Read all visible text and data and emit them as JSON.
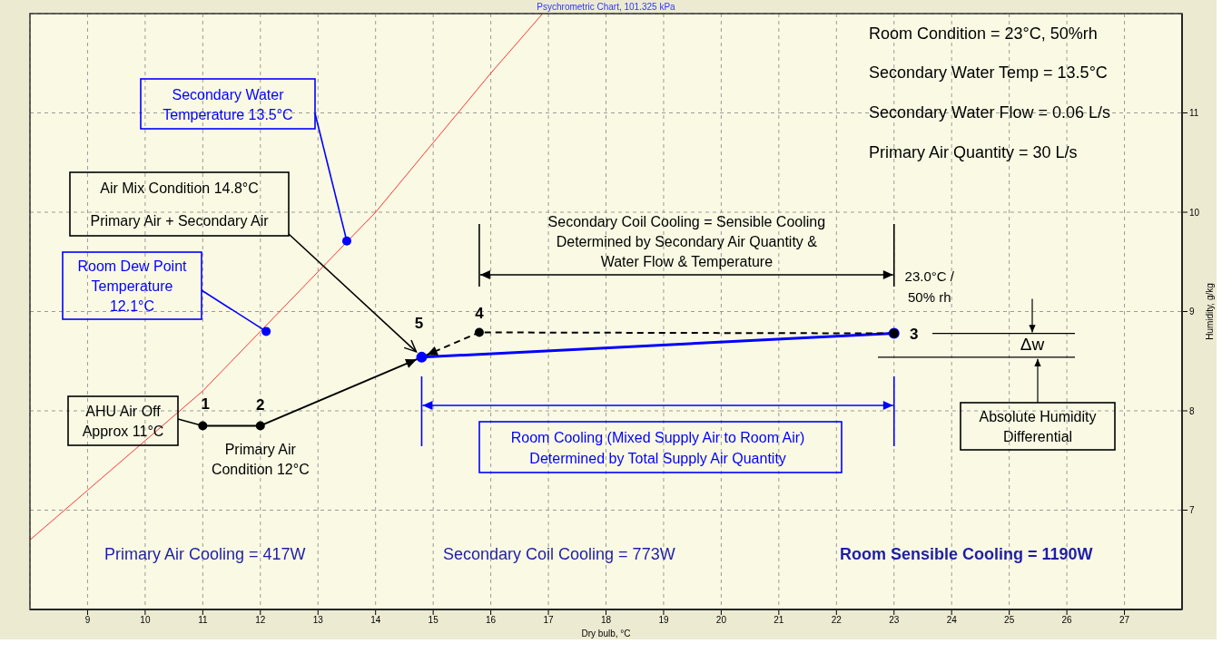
{
  "chart_data": {
    "type": "line",
    "title": "Psychrometric Chart, 101.325 kPa",
    "xlabel": "Dry bulb, °C",
    "ylabel": "Humidity, g/kg",
    "xlim": [
      8,
      28
    ],
    "xticks": [
      9,
      10,
      11,
      12,
      13,
      14,
      15,
      16,
      17,
      18,
      19,
      20,
      21,
      22,
      23,
      24,
      25,
      26,
      27
    ],
    "ylim": [
      6,
      12
    ],
    "yticks": [
      7,
      8,
      9,
      10,
      11
    ],
    "grid": true,
    "series": [
      {
        "type": "line",
        "x": [
          8,
          9,
          10,
          11,
          12,
          13,
          14,
          15,
          16,
          16.9
        ],
        "values": [
          6.7,
          7.2,
          7.7,
          8.2,
          8.8,
          9.4,
          10.0,
          10.7,
          11.4,
          12.0
        ],
        "color": "#ff3333",
        "marker": "none",
        "line_style": "solid"
      },
      {
        "type": "line",
        "x": [
          14.8,
          23
        ],
        "values": [
          8.54,
          8.78
        ],
        "color": "#0000ff",
        "marker": "circle",
        "line_style": "solid"
      },
      {
        "type": "line",
        "x": [
          11,
          12,
          14.8
        ],
        "values": [
          7.85,
          7.85,
          8.54
        ],
        "color": "#000000",
        "marker": "none",
        "line_style": "solid"
      },
      {
        "type": "line",
        "x": [
          23,
          15.8,
          14.8
        ],
        "values": [
          8.78,
          8.79,
          8.54
        ],
        "color": "#000000",
        "marker": "none",
        "line_style": "dashed"
      },
      {
        "type": "scatter",
        "x": [
          11,
          12,
          15.8,
          23
        ],
        "values": [
          7.85,
          7.85,
          8.79,
          8.78
        ],
        "color": "#000000",
        "marker": "circle"
      },
      {
        "type": "scatter",
        "x": [
          12.1,
          13.5
        ],
        "values": [
          8.8,
          9.71
        ],
        "color": "#0000ff",
        "marker": "circle"
      }
    ],
    "annotations": [
      "Room Condition = 23°C, 50%rh",
      "Secondary Water Temp = 13.5°C",
      "Secondary Water Flow = 0.06 L/s",
      "Primary Air Quantity = 30 L/s",
      "Secondary Water Temperature 13.5°C",
      "Air Mix Condition 14.8°C Primary Air + Secondary Air",
      {
        "text": "Room Dew Point Temperature 12.1°C",
        "x": 12.1,
        "y": 8.8
      },
      {
        "text": "AHU Air Off Approx 11°C",
        "x": 11,
        "y": 7.85
      },
      {
        "text": "Primary Air Condition 12°C",
        "x": 12,
        "y": 7.85
      },
      {
        "text": "1",
        "x": 11,
        "y": 7.85
      },
      {
        "text": "2",
        "x": 12,
        "y": 7.85
      },
      {
        "text": "3",
        "x": 23,
        "y": 8.78
      },
      {
        "text": "4",
        "x": 15.8,
        "y": 8.79
      },
      {
        "text": "5",
        "x": 14.8,
        "y": 8.54
      },
      {
        "text": "23.0°C / 50% rh",
        "x": 23,
        "y": 8.78
      },
      "Δw",
      "Absolute Humidity Differential",
      "Primary Air Cooling = 417W",
      "Secondary Coil Cooling = 773W",
      "Room Sensible Cooling = 1190W",
      "Secondary Coil Cooling = Sensible Cooling Determined by Secondary Air Quantity & Water Flow & Temperature",
      "Room Cooling (Mixed Supply Air to Room Air) Determined by Total Supply Air Quantity"
    ]
  }
}
